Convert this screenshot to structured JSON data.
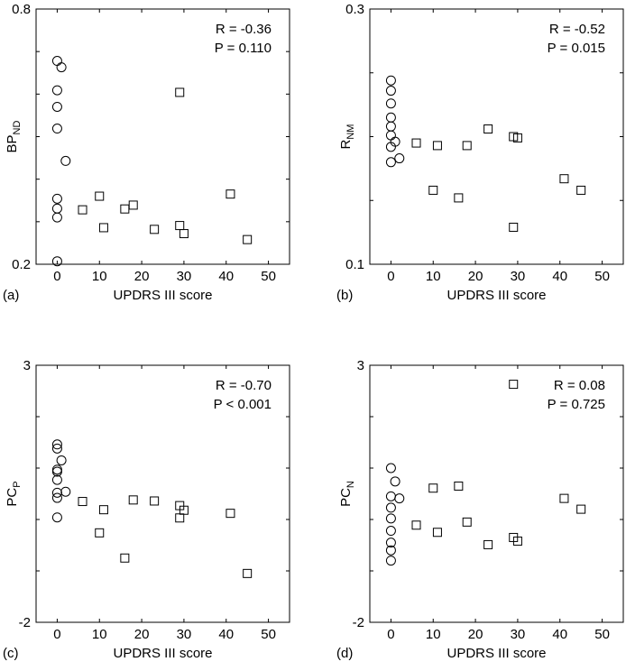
{
  "chart_data": [
    {
      "type": "scatter",
      "panel_label": "(a)",
      "xlabel": "UPDRS III score",
      "ylabel": "BP",
      "ylabel_sub": "ND",
      "xlim": [
        -5,
        55
      ],
      "ylim": [
        0.2,
        0.8
      ],
      "xticks": [
        0,
        10,
        20,
        30,
        40,
        50
      ],
      "yticks": [
        0.2,
        0.3,
        0.4,
        0.5,
        0.6,
        0.7,
        0.8
      ],
      "ytick_labels": [
        "0.2",
        "",
        "",
        "",
        "",
        "",
        "0.8"
      ],
      "stats": [
        "R = -0.36",
        "P = 0.110"
      ],
      "series": [
        {
          "marker": "circle",
          "points": [
            [
              0,
              0.678
            ],
            [
              1,
              0.663
            ],
            [
              0,
              0.609
            ],
            [
              0,
              0.57
            ],
            [
              0,
              0.519
            ],
            [
              2,
              0.443
            ],
            [
              0,
              0.354
            ],
            [
              0,
              0.331
            ],
            [
              0,
              0.31
            ],
            [
              0,
              0.207
            ]
          ]
        },
        {
          "marker": "square",
          "points": [
            [
              6,
              0.328
            ],
            [
              10,
              0.36
            ],
            [
              11,
              0.286
            ],
            [
              16,
              0.33
            ],
            [
              18,
              0.339
            ],
            [
              23,
              0.282
            ],
            [
              29,
              0.604
            ],
            [
              29,
              0.291
            ],
            [
              30,
              0.272
            ],
            [
              41,
              0.365
            ],
            [
              45,
              0.258
            ]
          ]
        }
      ]
    },
    {
      "type": "scatter",
      "panel_label": "(b)",
      "xlabel": "UPDRS III score",
      "ylabel": "R",
      "ylabel_sub": "NM",
      "xlim": [
        -5,
        55
      ],
      "ylim": [
        0.1,
        0.3
      ],
      "xticks": [
        0,
        10,
        20,
        30,
        40,
        50
      ],
      "yticks": [
        0.1,
        0.15,
        0.2,
        0.25,
        0.3
      ],
      "ytick_labels": [
        "0.1",
        "",
        "",
        "",
        "0.3"
      ],
      "stats": [
        "R = -0.52",
        "P = 0.015"
      ],
      "series": [
        {
          "marker": "circle",
          "points": [
            [
              0,
              0.244
            ],
            [
              0,
              0.236
            ],
            [
              0,
              0.226
            ],
            [
              0,
              0.215
            ],
            [
              0,
              0.208
            ],
            [
              0,
              0.201
            ],
            [
              1,
              0.196
            ],
            [
              0,
              0.192
            ],
            [
              2,
              0.183
            ],
            [
              0,
              0.18
            ]
          ]
        },
        {
          "marker": "square",
          "points": [
            [
              6,
              0.195
            ],
            [
              10,
              0.158
            ],
            [
              11,
              0.193
            ],
            [
              16,
              0.152
            ],
            [
              18,
              0.193
            ],
            [
              23,
              0.206
            ],
            [
              29,
              0.2
            ],
            [
              29,
              0.129
            ],
            [
              30,
              0.199
            ],
            [
              41,
              0.167
            ],
            [
              45,
              0.158
            ]
          ]
        }
      ]
    },
    {
      "type": "scatter",
      "panel_label": "(c)",
      "xlabel": "UPDRS III score",
      "ylabel": "PC",
      "ylabel_sub": "P",
      "xlim": [
        -5,
        55
      ],
      "ylim": [
        -2,
        3
      ],
      "xticks": [
        0,
        10,
        20,
        30,
        40,
        50
      ],
      "yticks": [
        -2,
        -1,
        0,
        1,
        2,
        3
      ],
      "ytick_labels": [
        "-2",
        "",
        "",
        "",
        "",
        "3"
      ],
      "stats": [
        "R = -0.70",
        "P < 0.001"
      ],
      "series": [
        {
          "marker": "circle",
          "points": [
            [
              0,
              1.46
            ],
            [
              0,
              1.38
            ],
            [
              1,
              1.15
            ],
            [
              0,
              0.97
            ],
            [
              0,
              0.93
            ],
            [
              0,
              0.77
            ],
            [
              0,
              0.52
            ],
            [
              0,
              0.42
            ],
            [
              2,
              0.54
            ],
            [
              0,
              0.04
            ]
          ]
        },
        {
          "marker": "square",
          "points": [
            [
              6,
              0.35
            ],
            [
              10,
              -0.26
            ],
            [
              11,
              0.19
            ],
            [
              16,
              -0.75
            ],
            [
              18,
              0.38
            ],
            [
              23,
              0.36
            ],
            [
              29,
              0.27
            ],
            [
              29,
              0.03
            ],
            [
              30,
              0.18
            ],
            [
              41,
              0.12
            ],
            [
              45,
              -1.05
            ]
          ]
        }
      ]
    },
    {
      "type": "scatter",
      "panel_label": "(d)",
      "xlabel": "UPDRS III score",
      "ylabel": "PC",
      "ylabel_sub": "N",
      "xlim": [
        -5,
        55
      ],
      "ylim": [
        -2,
        3
      ],
      "xticks": [
        0,
        10,
        20,
        30,
        40,
        50
      ],
      "yticks": [
        -2,
        -1,
        0,
        1,
        2,
        3
      ],
      "ytick_labels": [
        "-2",
        "",
        "",
        "",
        "",
        "3"
      ],
      "stats": [
        "R = 0.08",
        "P = 0.725"
      ],
      "series": [
        {
          "marker": "circle",
          "points": [
            [
              0,
              1.0
            ],
            [
              1,
              0.74
            ],
            [
              0,
              0.45
            ],
            [
              2,
              0.41
            ],
            [
              0,
              0.23
            ],
            [
              0,
              0.02
            ],
            [
              0,
              -0.22
            ],
            [
              0,
              -0.45
            ],
            [
              0,
              -0.6
            ],
            [
              0,
              -0.8
            ]
          ]
        },
        {
          "marker": "square",
          "points": [
            [
              6,
              -0.11
            ],
            [
              10,
              0.61
            ],
            [
              11,
              -0.25
            ],
            [
              16,
              0.65
            ],
            [
              18,
              -0.05
            ],
            [
              23,
              -0.49
            ],
            [
              29,
              2.63
            ],
            [
              29,
              -0.35
            ],
            [
              30,
              -0.42
            ],
            [
              41,
              0.41
            ],
            [
              45,
              0.2
            ]
          ]
        }
      ]
    }
  ]
}
